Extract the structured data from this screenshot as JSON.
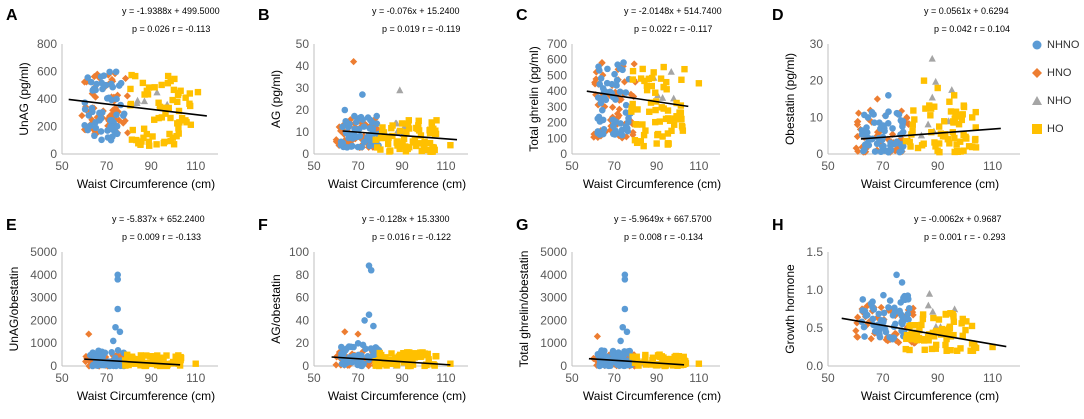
{
  "legend": [
    {
      "name": "NHNO",
      "color": "#5b9bd5",
      "marker": "circle-marker"
    },
    {
      "name": "HNO",
      "color": "#ed7d31",
      "marker": "diamond-marker"
    },
    {
      "name": "NHO",
      "color": "#a5a5a5",
      "marker": "triangle-marker"
    },
    {
      "name": "HO",
      "color": "#ffc000",
      "marker": "square-marker"
    }
  ],
  "chart_data": [
    {
      "type": "scatter",
      "panel": "A",
      "xlabel": "Waist Circumference (cm)",
      "ylabel": "UnAG (pg/ml)",
      "xlim": [
        50,
        120
      ],
      "ylim": [
        0,
        800
      ],
      "xticks": [
        "50",
        "70",
        "90",
        "110"
      ],
      "yticks": [
        "0",
        "200",
        "400",
        "600",
        "800"
      ],
      "equation": "y = -1.9388x + 499.5000",
      "stats": "p = 0.026 r = -0.113",
      "trend": {
        "slope": -1.9388,
        "intercept": 499.5,
        "x_range": [
          53,
          115
        ]
      },
      "cloud": [
        {
          "x0": 60,
          "x1": 78,
          "y0": 100,
          "y1": 600,
          "n": 60,
          "g": "NHNO"
        },
        {
          "x0": 58,
          "x1": 80,
          "y0": 150,
          "y1": 590,
          "n": 55,
          "g": "HNO"
        },
        {
          "x0": 80,
          "x1": 108,
          "y0": 60,
          "y1": 580,
          "n": 65,
          "g": "HO"
        },
        {
          "x0": 82,
          "x1": 100,
          "y0": 350,
          "y1": 560,
          "n": 6,
          "g": "NHO"
        }
      ],
      "extras": [
        {
          "x": 111,
          "y": 450,
          "g": "HO"
        }
      ]
    },
    {
      "type": "scatter",
      "panel": "B",
      "xlabel": "Waist Circumference (cm)",
      "ylabel": "AG (pg/ml)",
      "xlim": [
        50,
        120
      ],
      "ylim": [
        0,
        50
      ],
      "xticks": [
        "50",
        "70",
        "90",
        "110"
      ],
      "yticks": [
        "0",
        "10",
        "20",
        "30",
        "40",
        "50"
      ],
      "equation": "y = -0.076x + 15.2400",
      "stats": "p = 0.019 r = -0.119",
      "trend": {
        "slope": -0.076,
        "intercept": 15.24,
        "x_range": [
          63,
          115
        ]
      },
      "cloud": [
        {
          "x0": 62,
          "x1": 80,
          "y0": 3,
          "y1": 18,
          "n": 55,
          "g": "NHNO"
        },
        {
          "x0": 60,
          "x1": 80,
          "y0": 3,
          "y1": 16,
          "n": 55,
          "g": "HNO"
        },
        {
          "x0": 78,
          "x1": 106,
          "y0": 1,
          "y1": 16,
          "n": 65,
          "g": "HO"
        },
        {
          "x0": 84,
          "x1": 96,
          "y0": 8,
          "y1": 20,
          "n": 5,
          "g": "NHO"
        }
      ],
      "extras": [
        {
          "x": 68,
          "y": 42,
          "g": "HNO"
        },
        {
          "x": 64,
          "y": 20,
          "g": "NHNO"
        },
        {
          "x": 89,
          "y": 29,
          "g": "NHO"
        },
        {
          "x": 72,
          "y": 27,
          "g": "NHNO"
        },
        {
          "x": 112,
          "y": 4,
          "g": "HO"
        }
      ]
    },
    {
      "type": "scatter",
      "panel": "C",
      "xlabel": "Waist Circumference (cm)",
      "ylabel": "Total ghrelin (pg/ml)",
      "xlim": [
        50,
        120
      ],
      "ylim": [
        0,
        700
      ],
      "xticks": [
        "50",
        "70",
        "90",
        "110"
      ],
      "yticks": [
        "0",
        "100",
        "200",
        "300",
        "400",
        "500",
        "600",
        "700"
      ],
      "equation": "y = -2.0148x + 514.7400",
      "stats": "p = 0.022 r = -0.117",
      "trend": {
        "slope": -2.0148,
        "intercept": 514.74,
        "x_range": [
          57,
          105
        ]
      },
      "cloud": [
        {
          "x0": 62,
          "x1": 78,
          "y0": 120,
          "y1": 610,
          "n": 60,
          "g": "NHNO"
        },
        {
          "x0": 60,
          "x1": 80,
          "y0": 100,
          "y1": 600,
          "n": 55,
          "g": "HNO"
        },
        {
          "x0": 78,
          "x1": 104,
          "y0": 50,
          "y1": 580,
          "n": 65,
          "g": "HO"
        },
        {
          "x0": 84,
          "x1": 100,
          "y0": 350,
          "y1": 560,
          "n": 6,
          "g": "NHO"
        }
      ],
      "extras": [
        {
          "x": 110,
          "y": 450,
          "g": "HO"
        }
      ]
    },
    {
      "type": "scatter",
      "panel": "D",
      "xlabel": "Waist Circumference (cm)",
      "ylabel": "Obestatin (pg/ml)",
      "xlim": [
        50,
        120
      ],
      "ylim": [
        0,
        30
      ],
      "xticks": [
        "50",
        "70",
        "90",
        "110"
      ],
      "yticks": [
        "0",
        "10",
        "20",
        "30"
      ],
      "equation": "y = 0.0561x + 0.6294",
      "stats": "p = 0.042 r = 0.104",
      "trend": {
        "slope": 0.0561,
        "intercept": 0.6294,
        "x_range": [
          62,
          113
        ]
      },
      "cloud": [
        {
          "x0": 62,
          "x1": 78,
          "y0": 0.5,
          "y1": 12,
          "n": 60,
          "g": "NHNO"
        },
        {
          "x0": 60,
          "x1": 80,
          "y0": 0.5,
          "y1": 12,
          "n": 55,
          "g": "HNO"
        },
        {
          "x0": 78,
          "x1": 104,
          "y0": 0.5,
          "y1": 15,
          "n": 65,
          "g": "HO"
        },
        {
          "x0": 84,
          "x1": 98,
          "y0": 5,
          "y1": 22,
          "n": 7,
          "g": "NHO"
        }
      ],
      "extras": [
        {
          "x": 88,
          "y": 26,
          "g": "NHO"
        },
        {
          "x": 85,
          "y": 20,
          "g": "HO"
        },
        {
          "x": 90,
          "y": 18,
          "g": "HO"
        },
        {
          "x": 72,
          "y": 16,
          "g": "NHNO"
        },
        {
          "x": 68,
          "y": 15,
          "g": "HNO"
        },
        {
          "x": 96,
          "y": 16,
          "g": "HO"
        }
      ]
    },
    {
      "type": "scatter",
      "panel": "E",
      "xlabel": "Waist Circumference (cm)",
      "ylabel": "UnAG/obestatin",
      "xlim": [
        50,
        120
      ],
      "ylim": [
        0,
        5000
      ],
      "xticks": [
        "50",
        "70",
        "90",
        "110"
      ],
      "yticks": [
        "0",
        "1000",
        "2000",
        "3000",
        "4000",
        "5000"
      ],
      "equation": "y = -5.837x + 652.2400",
      "stats": "p = 0.009 r = -0.133",
      "trend": {
        "slope": -5.837,
        "intercept": 652.24,
        "x_range": [
          60,
          103
        ]
      },
      "cloud": [
        {
          "x0": 62,
          "x1": 78,
          "y0": 0,
          "y1": 700,
          "n": 55,
          "g": "NHNO"
        },
        {
          "x0": 60,
          "x1": 80,
          "y0": 0,
          "y1": 500,
          "n": 50,
          "g": "HNO"
        },
        {
          "x0": 78,
          "x1": 104,
          "y0": 0,
          "y1": 500,
          "n": 65,
          "g": "HO"
        },
        {
          "x0": 84,
          "x1": 98,
          "y0": 0,
          "y1": 200,
          "n": 5,
          "g": "NHO"
        }
      ],
      "extras": [
        {
          "x": 75,
          "y": 4000,
          "g": "NHNO"
        },
        {
          "x": 75,
          "y": 3800,
          "g": "NHNO"
        },
        {
          "x": 75,
          "y": 2500,
          "g": "NHNO"
        },
        {
          "x": 74,
          "y": 1700,
          "g": "NHNO"
        },
        {
          "x": 76,
          "y": 1500,
          "g": "NHNO"
        },
        {
          "x": 73,
          "y": 1100,
          "g": "NHNO"
        },
        {
          "x": 62,
          "y": 1400,
          "g": "HNO"
        },
        {
          "x": 110,
          "y": 100,
          "g": "HO"
        }
      ]
    },
    {
      "type": "scatter",
      "panel": "F",
      "xlabel": "Waist Circumference (cm)",
      "ylabel": "AG/obestatin",
      "xlim": [
        50,
        120
      ],
      "ylim": [
        0,
        100
      ],
      "xticks": [
        "50",
        "70",
        "90",
        "110"
      ],
      "yticks": [
        "0",
        "20",
        "40",
        "60",
        "80",
        "100"
      ],
      "equation": "y = -0.128x + 15.3300",
      "stats": "p = 0.016 r = -0.122",
      "trend": {
        "slope": -0.128,
        "intercept": 15.33,
        "x_range": [
          58,
          112
        ]
      },
      "cloud": [
        {
          "x0": 62,
          "x1": 80,
          "y0": 0,
          "y1": 20,
          "n": 55,
          "g": "NHNO"
        },
        {
          "x0": 60,
          "x1": 80,
          "y0": 0,
          "y1": 15,
          "n": 50,
          "g": "HNO"
        },
        {
          "x0": 78,
          "x1": 106,
          "y0": 0,
          "y1": 12,
          "n": 65,
          "g": "HO"
        },
        {
          "x0": 84,
          "x1": 98,
          "y0": 0,
          "y1": 6,
          "n": 5,
          "g": "NHO"
        }
      ],
      "extras": [
        {
          "x": 75,
          "y": 88,
          "g": "NHNO"
        },
        {
          "x": 76,
          "y": 84,
          "g": "NHNO"
        },
        {
          "x": 75,
          "y": 45,
          "g": "NHNO"
        },
        {
          "x": 73,
          "y": 40,
          "g": "NHNO"
        },
        {
          "x": 77,
          "y": 35,
          "g": "NHNO"
        },
        {
          "x": 64,
          "y": 30,
          "g": "HNO"
        },
        {
          "x": 70,
          "y": 28,
          "g": "HNO"
        },
        {
          "x": 112,
          "y": 2,
          "g": "HO"
        }
      ]
    },
    {
      "type": "scatter",
      "panel": "G",
      "xlabel": "Waist Circumference (cm)",
      "ylabel": "Total ghrelin/obestatin",
      "xlim": [
        50,
        120
      ],
      "ylim": [
        0,
        5000
      ],
      "xticks": [
        "50",
        "70",
        "90",
        "110"
      ],
      "yticks": [
        "0",
        "1000",
        "2000",
        "3000",
        "4000",
        "5000"
      ],
      "equation": "y = -5.9649x + 667.5700",
      "stats": "p = 0.008 r = -0.134",
      "trend": {
        "slope": -5.9649,
        "intercept": 667.57,
        "x_range": [
          58,
          103
        ]
      },
      "cloud": [
        {
          "x0": 62,
          "x1": 78,
          "y0": 0,
          "y1": 700,
          "n": 55,
          "g": "NHNO"
        },
        {
          "x0": 60,
          "x1": 80,
          "y0": 0,
          "y1": 500,
          "n": 50,
          "g": "HNO"
        },
        {
          "x0": 78,
          "x1": 104,
          "y0": 0,
          "y1": 500,
          "n": 65,
          "g": "HO"
        },
        {
          "x0": 84,
          "x1": 98,
          "y0": 0,
          "y1": 200,
          "n": 5,
          "g": "NHO"
        }
      ],
      "extras": [
        {
          "x": 75,
          "y": 4000,
          "g": "NHNO"
        },
        {
          "x": 75,
          "y": 3800,
          "g": "NHNO"
        },
        {
          "x": 75,
          "y": 2500,
          "g": "NHNO"
        },
        {
          "x": 74,
          "y": 1700,
          "g": "NHNO"
        },
        {
          "x": 76,
          "y": 1500,
          "g": "NHNO"
        },
        {
          "x": 73,
          "y": 1100,
          "g": "NHNO"
        },
        {
          "x": 62,
          "y": 1300,
          "g": "HNO"
        },
        {
          "x": 110,
          "y": 100,
          "g": "HO"
        }
      ]
    },
    {
      "type": "scatter",
      "panel": "H",
      "xlabel": "Waist Circumference (cm)",
      "ylabel": "Growth hormone",
      "xlim": [
        50,
        120
      ],
      "ylim": [
        0,
        1.5
      ],
      "xticks": [
        "50",
        "70",
        "90",
        "110"
      ],
      "yticks": [
        "0.0",
        "0.5",
        "1.0",
        "1.5"
      ],
      "equation": "y = -0.0062x + 0.9687",
      "stats": "p = 0.001 r = - 0.293",
      "trend": {
        "slope": -0.0062,
        "intercept": 0.9687,
        "x_range": [
          55,
          115
        ]
      },
      "cloud": [
        {
          "x0": 62,
          "x1": 80,
          "y0": 0.35,
          "y1": 0.95,
          "n": 60,
          "g": "NHNO"
        },
        {
          "x0": 60,
          "x1": 82,
          "y0": 0.3,
          "y1": 0.8,
          "n": 55,
          "g": "HNO"
        },
        {
          "x0": 78,
          "x1": 104,
          "y0": 0.2,
          "y1": 0.7,
          "n": 70,
          "g": "HO"
        },
        {
          "x0": 84,
          "x1": 98,
          "y0": 0.35,
          "y1": 0.8,
          "n": 6,
          "g": "NHO"
        }
      ],
      "extras": [
        {
          "x": 75,
          "y": 1.2,
          "g": "NHNO"
        },
        {
          "x": 77,
          "y": 1.1,
          "g": "NHNO"
        },
        {
          "x": 87,
          "y": 0.95,
          "g": "NHO"
        },
        {
          "x": 110,
          "y": 0.25,
          "g": "HO"
        }
      ]
    }
  ]
}
